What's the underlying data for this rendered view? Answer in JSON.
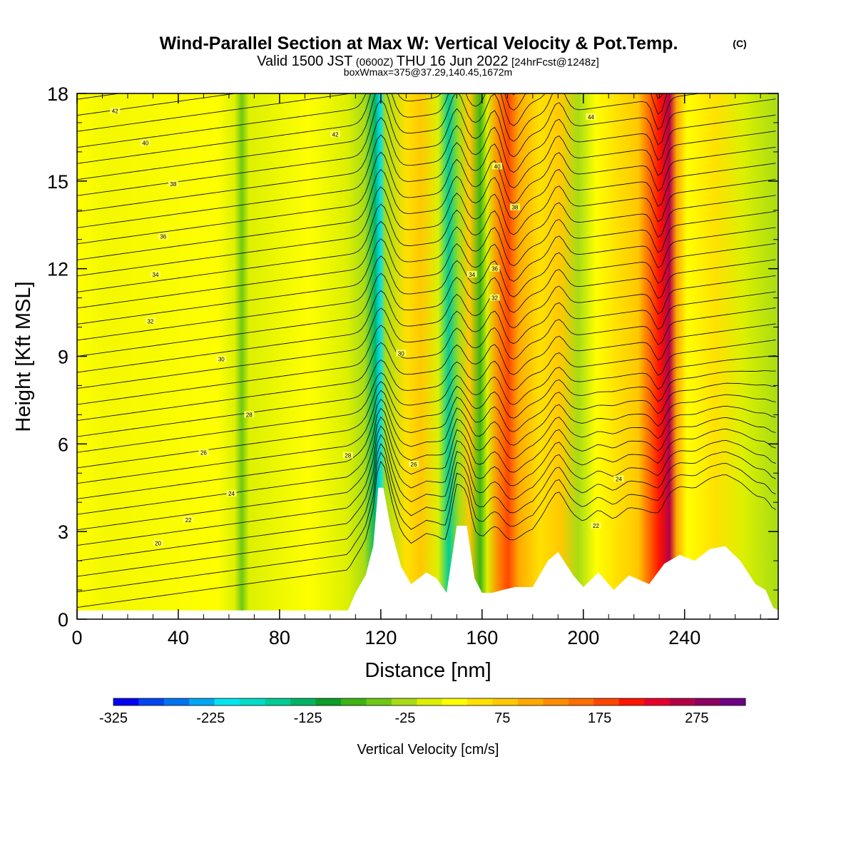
{
  "chart_data": {
    "type": "heatmap",
    "title": "Wind-Parallel Section at Max W: Vertical Velocity & Pot.Temp.",
    "title_mark": "(C)",
    "subtitle_main": "Valid 1500 JST",
    "subtitle_z": "(0600Z)",
    "subtitle_date": "THU 16 Jun 2022",
    "subtitle_fcst": "[24hrFcst@1248z]",
    "subtitle2": "boxWmax=375@37.29,140.45,1672m",
    "xlabel": "Distance [nm]",
    "ylabel": "Height [Kft MSL]",
    "xlim": [
      0,
      277
    ],
    "ylim": [
      0,
      18
    ],
    "xticks": [
      "0",
      "40",
      "80",
      "120",
      "160",
      "200",
      "240"
    ],
    "yticks": [
      "0",
      "3",
      "6",
      "9",
      "12",
      "15",
      "18"
    ],
    "colorbar": {
      "label": "Vertical Velocity [cm/s]",
      "ticklabels": [
        "-325",
        "-225",
        "-125",
        "-25",
        "75",
        "175",
        "275"
      ],
      "bounds": [
        -325,
        325
      ],
      "colors": [
        "#0000f5",
        "#0045f0",
        "#0074f0",
        "#00a8f5",
        "#00e6f0",
        "#00dcc8",
        "#00cc96",
        "#00b464",
        "#0a9e28",
        "#3cb414",
        "#6ec814",
        "#a8dc14",
        "#dcf000",
        "#ffff00",
        "#ffe100",
        "#ffc800",
        "#ffaa00",
        "#ff8c00",
        "#ff6e00",
        "#ff4600",
        "#ff1400",
        "#e6002d",
        "#b40046",
        "#8c0064",
        "#6e0082"
      ]
    },
    "contour_labels": [
      "42",
      "40",
      "38",
      "36",
      "34",
      "32",
      "30",
      "28",
      "26",
      "24",
      "22",
      "20",
      "44",
      "42",
      "40",
      "38",
      "36",
      "34",
      "32",
      "30",
      "28",
      "26",
      "24",
      "22"
    ]
  }
}
